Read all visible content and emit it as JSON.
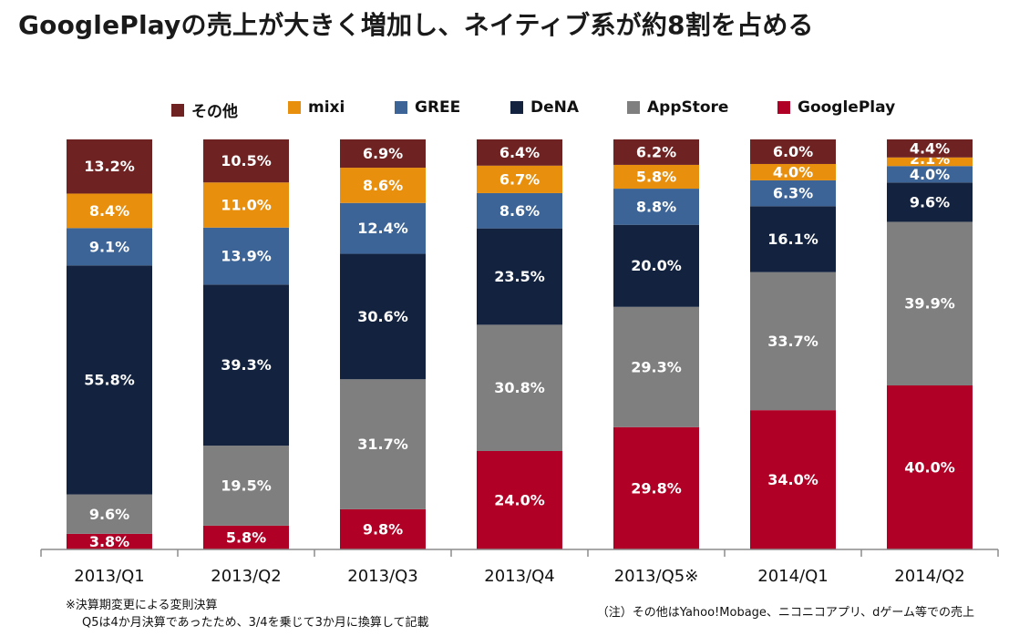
{
  "page": {
    "title": "GooglePlayの売上が大きく増加し、ネイティブ系が約8割を占める",
    "note_line1": "※決算期変更による変則決算",
    "note_line2": "Q5は4か月決算であったため、3/4を乗じて3か月に換算して記載",
    "source_note": "（注）その他はYahoo!Mobage、ニコニコアプリ、dゲーム等での売上"
  },
  "chart_data": {
    "type": "bar",
    "stacked": true,
    "percent_stacked": true,
    "categories": [
      "2013/Q1",
      "2013/Q2",
      "2013/Q3",
      "2013/Q4",
      "2013/Q5※",
      "2014/Q1",
      "2014/Q2"
    ],
    "legend_position": "top",
    "grid": false,
    "ylim": [
      0,
      100
    ],
    "series": [
      {
        "name": "GooglePlay",
        "color": "#b10026",
        "values": [
          3.8,
          5.8,
          9.8,
          24.0,
          29.8,
          34.0,
          40.0
        ],
        "labels": [
          "3.8%",
          "5.8%",
          "9.8%",
          "24.0%",
          "29.8%",
          "34.0%",
          "40.0%"
        ]
      },
      {
        "name": "AppStore",
        "color": "#7f7f7f",
        "values": [
          9.6,
          19.5,
          31.7,
          30.8,
          29.3,
          33.7,
          39.9
        ],
        "labels": [
          "9.6%",
          "19.5%",
          "31.7%",
          "30.8%",
          "29.3%",
          "33.7%",
          "39.9%"
        ]
      },
      {
        "name": "DeNA",
        "color": "#13233f",
        "values": [
          55.8,
          39.3,
          30.6,
          23.5,
          20.0,
          16.1,
          9.6
        ],
        "labels": [
          "55.8%",
          "39.3%",
          "30.6%",
          "23.5%",
          "20.0%",
          "16.1%",
          "9.6%"
        ]
      },
      {
        "name": "GREE",
        "color": "#3c6497",
        "values": [
          9.1,
          13.9,
          12.4,
          8.6,
          8.8,
          6.3,
          4.0
        ],
        "labels": [
          "9.1%",
          "13.9%",
          "12.4%",
          "8.6%",
          "8.8%",
          "6.3%",
          "4.0%"
        ]
      },
      {
        "name": "mixi",
        "color": "#e8900e",
        "values": [
          8.4,
          11.0,
          8.6,
          6.7,
          5.8,
          4.0,
          2.1
        ],
        "labels": [
          "8.4%",
          "11.0%",
          "8.6%",
          "6.7%",
          "5.8%",
          "4.0%",
          "2.1%"
        ]
      },
      {
        "name": "その他",
        "color": "#6e2222",
        "values": [
          13.2,
          10.5,
          6.9,
          6.4,
          6.2,
          6.0,
          4.4
        ],
        "labels": [
          "13.2%",
          "10.5%",
          "6.9%",
          "6.4%",
          "6.2%",
          "6.0%",
          "4.4%"
        ]
      }
    ],
    "legend_order": [
      "その他",
      "mixi",
      "GREE",
      "DeNA",
      "AppStore",
      "GooglePlay"
    ]
  }
}
